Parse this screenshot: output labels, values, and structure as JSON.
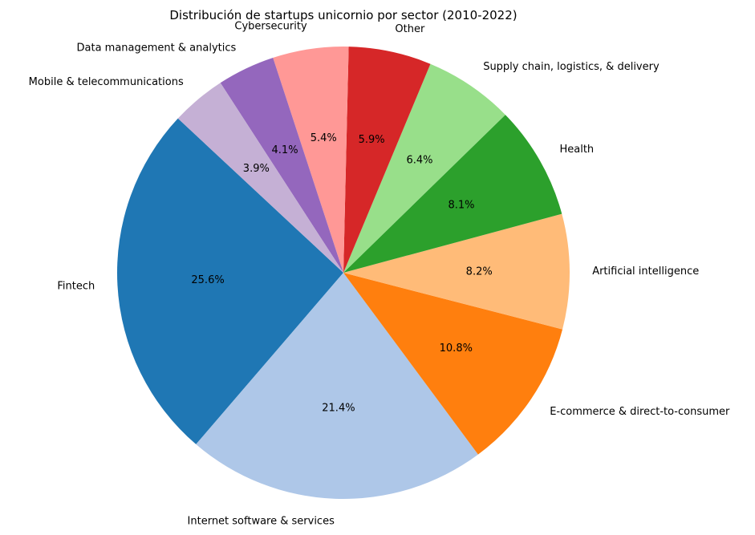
{
  "chart_data": {
    "type": "pie",
    "title": "Distribución de startups unicornio por sector (2010-2022)",
    "start_angle_deg": 137,
    "direction": "counterclockwise",
    "slices": [
      {
        "label": "Fintech",
        "value": 25.6,
        "pct_label": "25.6%",
        "color": "#1f77b4"
      },
      {
        "label": "Internet software & services",
        "value": 21.4,
        "pct_label": "21.4%",
        "color": "#aec7e8"
      },
      {
        "label": "E-commerce & direct-to-consumer",
        "value": 10.8,
        "pct_label": "10.8%",
        "color": "#ff7f0e"
      },
      {
        "label": "Artificial intelligence",
        "value": 8.2,
        "pct_label": "8.2%",
        "color": "#ffbb78"
      },
      {
        "label": "Health",
        "value": 8.1,
        "pct_label": "8.1%",
        "color": "#2ca02c"
      },
      {
        "label": "Supply chain, logistics, & delivery",
        "value": 6.4,
        "pct_label": "6.4%",
        "color": "#98df8a"
      },
      {
        "label": "Other",
        "value": 5.9,
        "pct_label": "5.9%",
        "color": "#d62728"
      },
      {
        "label": "Cybersecurity",
        "value": 5.4,
        "pct_label": "5.4%",
        "color": "#ff9896"
      },
      {
        "label": "Data management & analytics",
        "value": 4.1,
        "pct_label": "4.1%",
        "color": "#9467bd"
      },
      {
        "label": "Mobile & telecommunications",
        "value": 3.9,
        "pct_label": "3.9%",
        "color": "#c5b0d5"
      }
    ]
  }
}
